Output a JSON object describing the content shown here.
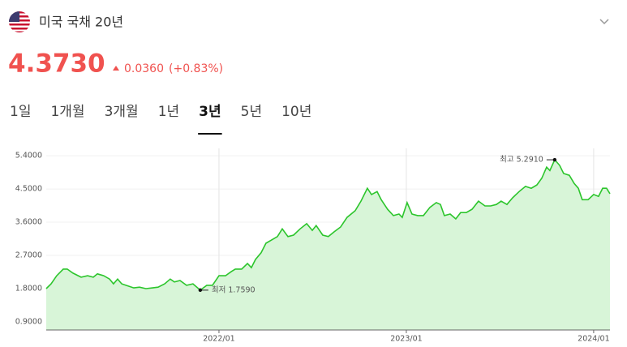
{
  "header": {
    "title": "미국 국채 20년",
    "price": "4.3730",
    "change": "0.0360",
    "change_pct": "(+0.83%)"
  },
  "tabs": {
    "items": [
      "1일",
      "1개월",
      "3개월",
      "1년",
      "3년",
      "5년",
      "10년"
    ],
    "active": 4
  },
  "chart_data": {
    "type": "area",
    "color": "#2cc52c",
    "fill": "#d8f5d8",
    "grid": true,
    "x": [
      2021.078,
      2021.104,
      2021.134,
      2021.169,
      2021.19,
      2021.221,
      2021.264,
      2021.299,
      2021.329,
      2021.351,
      2021.385,
      2021.416,
      2021.437,
      2021.459,
      2021.481,
      2021.515,
      2021.545,
      2021.576,
      2021.61,
      2021.645,
      2021.675,
      2021.71,
      2021.74,
      2021.762,
      2021.792,
      2021.827,
      2021.861,
      2021.9,
      2021.935,
      2021.965,
      2022.0,
      2022.035,
      2022.065,
      2022.087,
      2022.121,
      2022.152,
      2022.173,
      2022.195,
      2022.225,
      2022.251,
      2022.281,
      2022.312,
      2022.338,
      2022.368,
      2022.398,
      2022.433,
      2022.468,
      2022.498,
      2022.519,
      2022.554,
      2022.584,
      2022.615,
      2022.649,
      2022.684,
      2022.727,
      2022.758,
      2022.792,
      2022.814,
      2022.844,
      2022.866,
      2022.9,
      2022.931,
      2022.961,
      2022.978,
      2023.004,
      2023.03,
      2023.061,
      2023.091,
      2023.126,
      2023.16,
      2023.182,
      2023.203,
      2023.234,
      2023.264,
      2023.29,
      2023.32,
      2023.351,
      2023.385,
      2023.42,
      2023.45,
      2023.481,
      2023.506,
      2023.537,
      2023.567,
      2023.602,
      2023.636,
      2023.667,
      2023.697,
      2023.723,
      2023.749,
      2023.766,
      2023.792,
      2023.818,
      2023.84,
      2023.87,
      2023.896,
      2023.918,
      2023.939,
      2023.97,
      2024.0,
      2024.026,
      2024.048,
      2024.069,
      2024.087
    ],
    "values": [
      1.8,
      1.93,
      2.15,
      2.33,
      2.33,
      2.22,
      2.11,
      2.15,
      2.11,
      2.2,
      2.15,
      2.06,
      1.93,
      2.06,
      1.93,
      1.87,
      1.82,
      1.84,
      1.8,
      1.82,
      1.84,
      1.93,
      2.06,
      1.98,
      2.02,
      1.89,
      1.93,
      1.759,
      1.89,
      1.89,
      2.15,
      2.15,
      2.26,
      2.33,
      2.33,
      2.48,
      2.37,
      2.59,
      2.77,
      3.03,
      3.12,
      3.21,
      3.42,
      3.21,
      3.25,
      3.42,
      3.56,
      3.38,
      3.51,
      3.25,
      3.21,
      3.34,
      3.47,
      3.73,
      3.91,
      4.17,
      4.52,
      4.35,
      4.43,
      4.21,
      3.95,
      3.78,
      3.82,
      3.73,
      4.13,
      3.82,
      3.78,
      3.78,
      4.0,
      4.13,
      4.08,
      3.78,
      3.82,
      3.69,
      3.86,
      3.86,
      3.95,
      4.17,
      4.04,
      4.04,
      4.08,
      4.17,
      4.08,
      4.26,
      4.43,
      4.57,
      4.52,
      4.61,
      4.79,
      5.09,
      5.0,
      5.291,
      5.14,
      4.92,
      4.87,
      4.65,
      4.52,
      4.21,
      4.21,
      4.35,
      4.3,
      4.52,
      4.52,
      4.373
    ],
    "xlim": [
      2021.078,
      2024.087
    ],
    "xticks": [
      {
        "value": 2022,
        "label": "2022/01"
      },
      {
        "value": 2023,
        "label": "2023/01"
      },
      {
        "value": 2024,
        "label": "2024/01"
      }
    ],
    "ylim": [
      0.68,
      5.6
    ],
    "yticks": [
      {
        "value": 0.9,
        "label": "0.9000"
      },
      {
        "value": 1.8,
        "label": "1.8000"
      },
      {
        "value": 2.7,
        "label": "2.7000"
      },
      {
        "value": 3.6,
        "label": "3.6000"
      },
      {
        "value": 4.5,
        "label": "4.5000"
      },
      {
        "value": 5.4,
        "label": "5.4000"
      }
    ],
    "annotations": [
      {
        "label": "최고",
        "x": 2023.792,
        "value": 5.291,
        "value_label": "5.2910",
        "side": "left"
      },
      {
        "label": "최저",
        "x": 2021.9,
        "value": 1.759,
        "value_label": "1.7590",
        "side": "right"
      }
    ]
  }
}
